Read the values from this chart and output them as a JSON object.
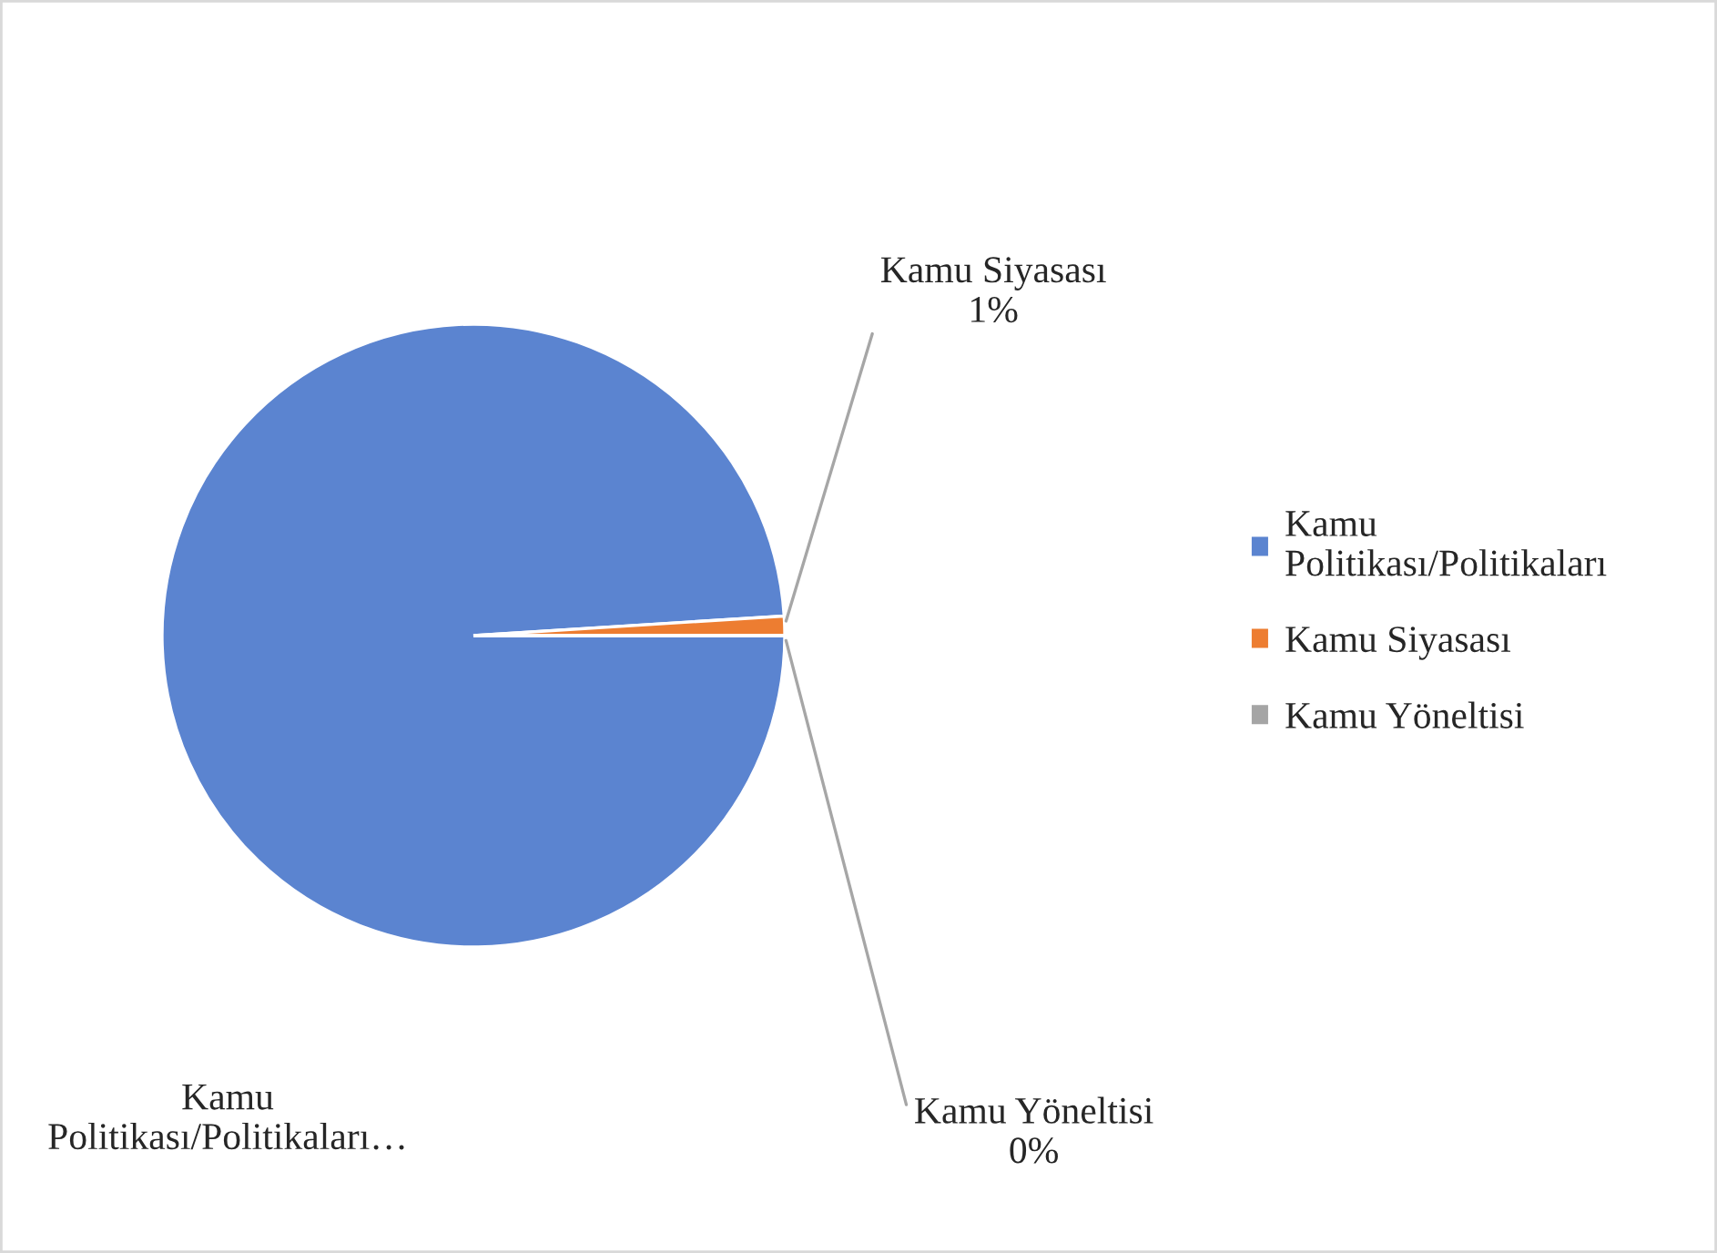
{
  "chart_data": {
    "type": "pie",
    "categories": [
      "Kamu Politikası/Politikaları",
      "Kamu Siyasası",
      "Kamu Yöneltisi"
    ],
    "values": [
      99,
      1,
      0
    ],
    "colors": [
      "#5b84d0",
      "#ed7d31",
      "#a5a5a5"
    ],
    "value_labels": [
      null,
      "1%",
      "0%"
    ],
    "annotations": [
      "Kamu Politikası/Politikaları…"
    ],
    "legend": "right"
  }
}
